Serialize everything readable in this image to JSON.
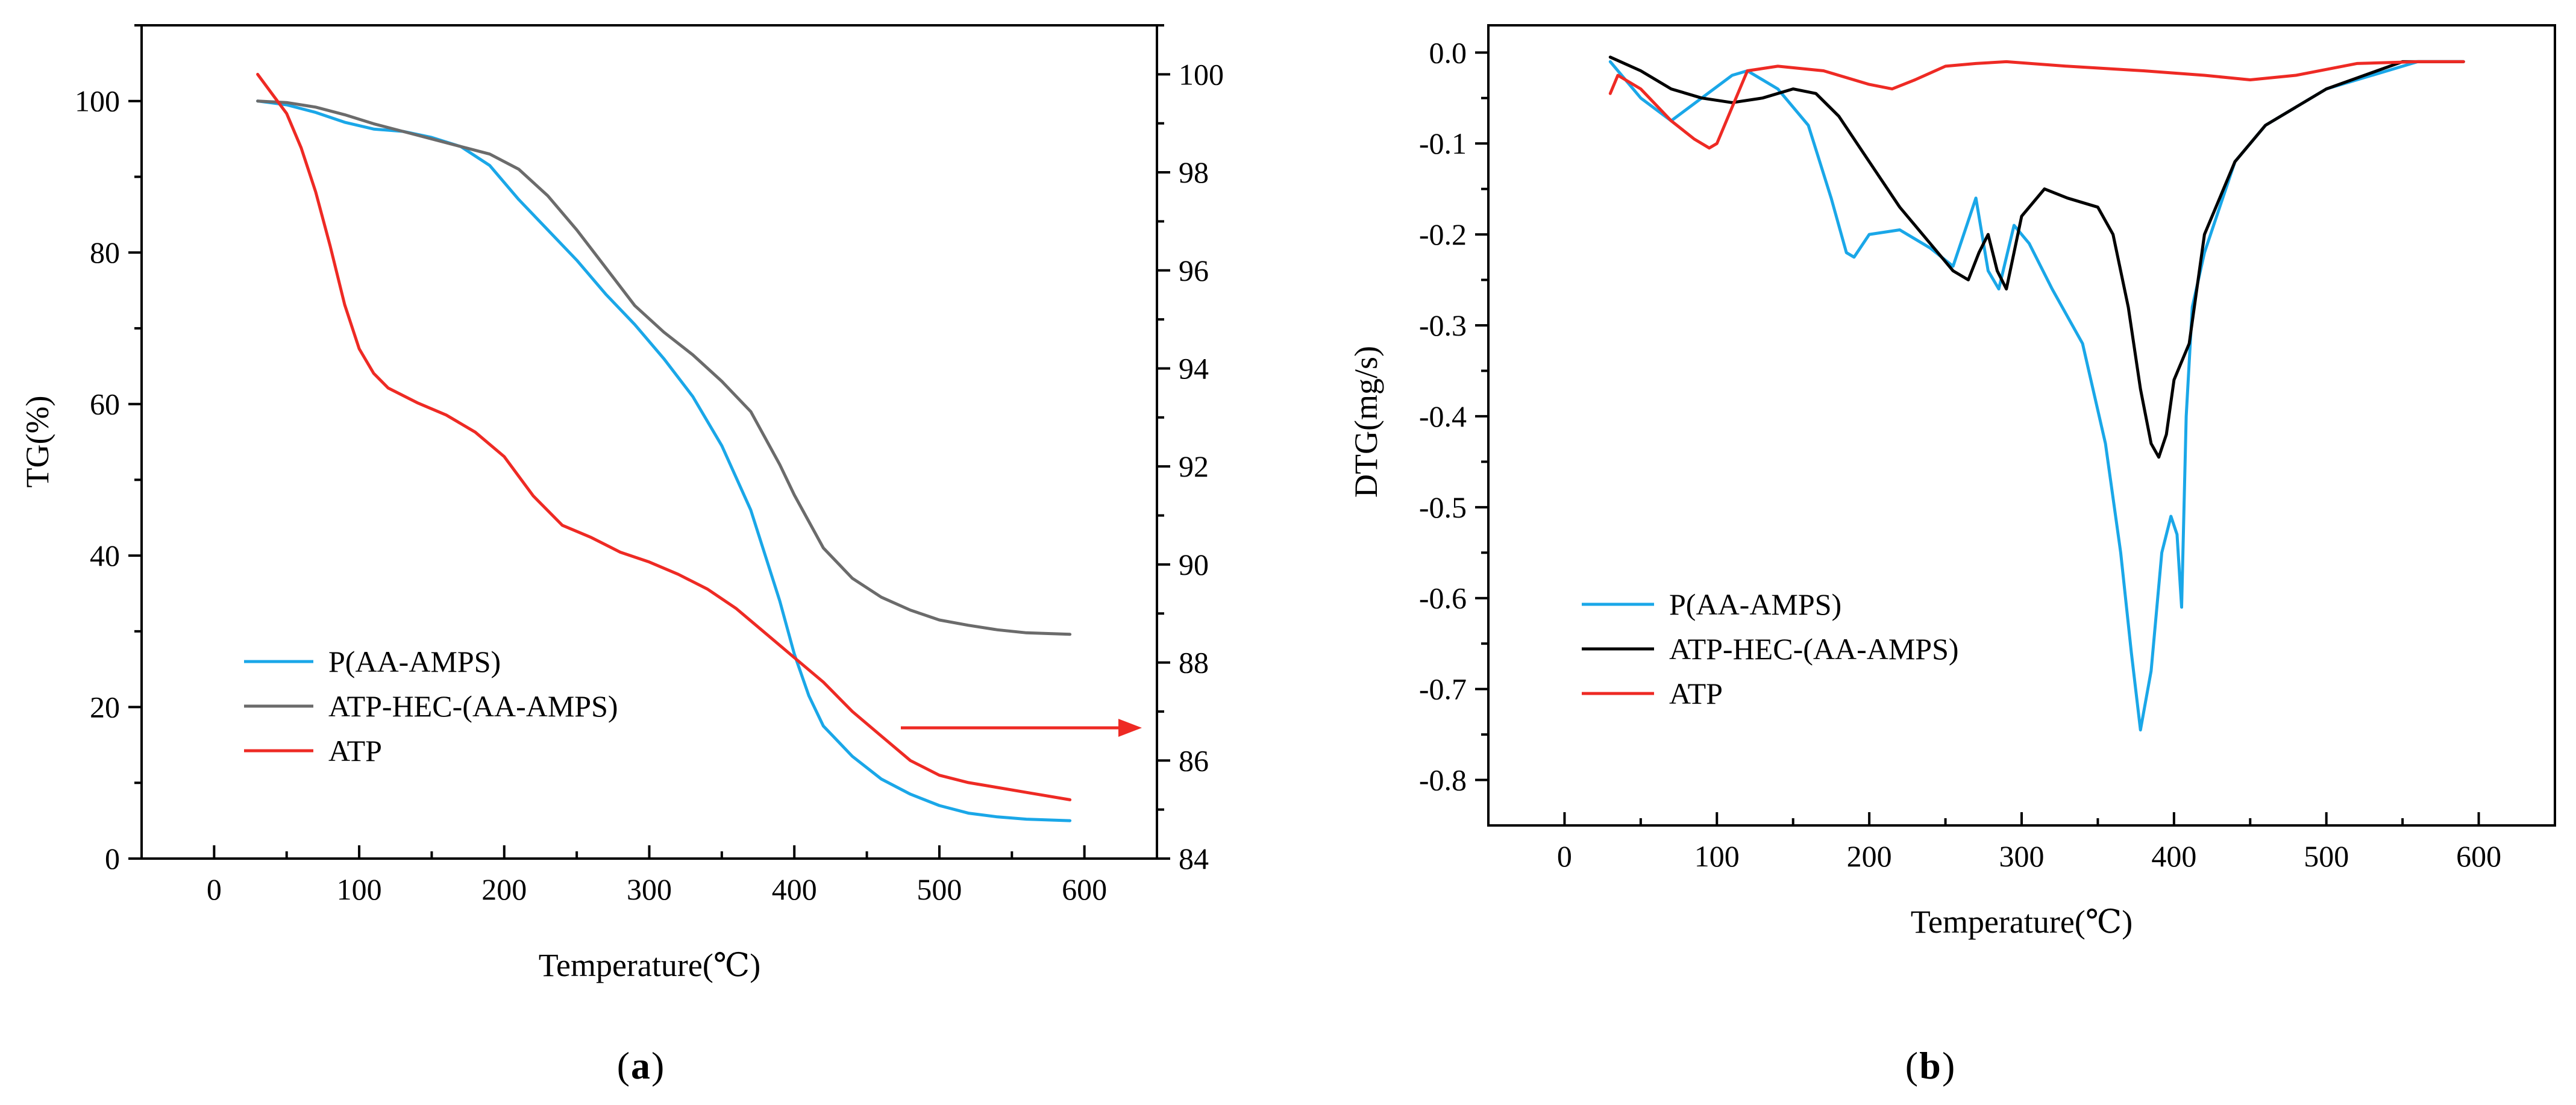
{
  "chart_data": [
    {
      "type": "line",
      "panel_label": "a",
      "xlabel": "Temperature(℃)",
      "ylabel": "TG(%)",
      "xlim": [
        -50,
        650
      ],
      "ylim": [
        0,
        110
      ],
      "y2lim": [
        84,
        101
      ],
      "x_ticks": [
        0,
        100,
        200,
        300,
        400,
        500,
        600
      ],
      "y_ticks": [
        0,
        20,
        40,
        60,
        80,
        100
      ],
      "y2_ticks": [
        84,
        86,
        88,
        90,
        92,
        94,
        96,
        98,
        100
      ],
      "x_tick_labels": [
        "0",
        "100",
        "200",
        "300",
        "400",
        "500",
        "600"
      ],
      "y_tick_labels": [
        "0",
        "20",
        "40",
        "60",
        "80",
        "100"
      ],
      "y2_tick_labels": [
        "84",
        "86",
        "88",
        "90",
        "92",
        "94",
        "96",
        "98",
        "100"
      ],
      "legend_position": "lower-left",
      "annotation": "arrow pointing to right axis for ATP curve",
      "series": [
        {
          "name": "P(AA-AMPS)",
          "color": "#1aa7e8",
          "axis": "left",
          "x": [
            30,
            50,
            70,
            90,
            110,
            130,
            150,
            170,
            190,
            210,
            230,
            250,
            270,
            290,
            310,
            330,
            350,
            370,
            390,
            400,
            410,
            420,
            440,
            460,
            480,
            500,
            520,
            540,
            560,
            590
          ],
          "y": [
            100,
            99.5,
            98.5,
            97.2,
            96.3,
            96,
            95.2,
            94,
            91.5,
            87,
            83,
            79,
            74.5,
            70.5,
            66,
            61,
            54.5,
            46,
            34,
            27,
            21.5,
            17.5,
            13.5,
            10.5,
            8.5,
            7,
            6,
            5.5,
            5.2,
            5
          ]
        },
        {
          "name": "ATP-HEC-(AA-AMPS)",
          "color": "#6b6b6b",
          "axis": "left",
          "x": [
            30,
            50,
            70,
            90,
            110,
            130,
            150,
            170,
            190,
            210,
            230,
            250,
            270,
            290,
            310,
            330,
            350,
            370,
            390,
            400,
            410,
            420,
            440,
            460,
            480,
            500,
            520,
            540,
            560,
            590
          ],
          "y": [
            100,
            99.8,
            99.2,
            98.2,
            97,
            96,
            95,
            94,
            93,
            91,
            87.5,
            83,
            78,
            73,
            69.5,
            66.5,
            63,
            59,
            52,
            48,
            44.5,
            41,
            37,
            34.5,
            32.8,
            31.5,
            30.8,
            30.2,
            29.8,
            29.6
          ]
        },
        {
          "name": "ATP",
          "color": "#ee2a24",
          "axis": "right",
          "x": [
            30,
            40,
            50,
            60,
            70,
            80,
            90,
            100,
            110,
            120,
            140,
            160,
            180,
            200,
            220,
            240,
            260,
            280,
            300,
            320,
            340,
            360,
            380,
            400,
            420,
            440,
            460,
            480,
            500,
            520,
            540,
            560,
            590
          ],
          "y": [
            100,
            99.6,
            99.2,
            98.5,
            97.6,
            96.5,
            95.3,
            94.4,
            93.9,
            93.6,
            93.3,
            93.05,
            92.7,
            92.2,
            91.4,
            90.8,
            90.55,
            90.25,
            90.05,
            89.8,
            89.5,
            89.1,
            88.6,
            88.1,
            87.6,
            87.0,
            86.5,
            86.0,
            85.7,
            85.55,
            85.45,
            85.35,
            85.2
          ]
        }
      ]
    },
    {
      "type": "line",
      "panel_label": "b",
      "xlabel": "Temperature(℃)",
      "ylabel": "DTG(mg/s)",
      "xlim": [
        -50,
        650
      ],
      "ylim": [
        -0.85,
        0.03
      ],
      "x_ticks": [
        0,
        100,
        200,
        300,
        400,
        500,
        600
      ],
      "y_ticks": [
        0.0,
        -0.1,
        -0.2,
        -0.3,
        -0.4,
        -0.5,
        -0.6,
        -0.7,
        -0.8
      ],
      "x_tick_labels": [
        "0",
        "100",
        "200",
        "300",
        "400",
        "500",
        "600"
      ],
      "y_tick_labels": [
        "0.0",
        "-0.1",
        "-0.2",
        "-0.3",
        "-0.4",
        "-0.5",
        "-0.6",
        "-0.7",
        "-0.8"
      ],
      "legend_position": "lower-left",
      "series": [
        {
          "name": "P(AA-AMPS)",
          "color": "#1aa7e8",
          "x": [
            30,
            50,
            70,
            90,
            110,
            120,
            140,
            160,
            175,
            185,
            190,
            200,
            220,
            240,
            255,
            262,
            270,
            278,
            285,
            295,
            305,
            320,
            340,
            355,
            365,
            372,
            378,
            385,
            392,
            398,
            402,
            405,
            408,
            412,
            420,
            440,
            460,
            500,
            560,
            590
          ],
          "y": [
            -0.01,
            -0.05,
            -0.075,
            -0.05,
            -0.025,
            -0.02,
            -0.04,
            -0.08,
            -0.16,
            -0.22,
            -0.225,
            -0.2,
            -0.195,
            -0.215,
            -0.235,
            -0.2,
            -0.16,
            -0.24,
            -0.26,
            -0.19,
            -0.21,
            -0.26,
            -0.32,
            -0.43,
            -0.55,
            -0.66,
            -0.745,
            -0.68,
            -0.55,
            -0.51,
            -0.53,
            -0.61,
            -0.4,
            -0.28,
            -0.22,
            -0.12,
            -0.08,
            -0.04,
            -0.01,
            -0.01
          ]
        },
        {
          "name": "ATP-HEC-(AA-AMPS)",
          "color": "#000000",
          "x": [
            30,
            50,
            70,
            90,
            110,
            130,
            150,
            165,
            180,
            200,
            220,
            240,
            255,
            265,
            272,
            278,
            284,
            290,
            300,
            315,
            330,
            350,
            360,
            370,
            378,
            385,
            390,
            395,
            400,
            410,
            420,
            440,
            460,
            500,
            550,
            590
          ],
          "y": [
            -0.005,
            -0.02,
            -0.04,
            -0.05,
            -0.055,
            -0.05,
            -0.04,
            -0.045,
            -0.07,
            -0.12,
            -0.17,
            -0.21,
            -0.24,
            -0.25,
            -0.22,
            -0.2,
            -0.24,
            -0.26,
            -0.18,
            -0.15,
            -0.16,
            -0.17,
            -0.2,
            -0.28,
            -0.37,
            -0.43,
            -0.445,
            -0.42,
            -0.36,
            -0.32,
            -0.2,
            -0.12,
            -0.08,
            -0.04,
            -0.01,
            -0.01
          ]
        },
        {
          "name": "ATP",
          "color": "#ee2a24",
          "x": [
            30,
            35,
            50,
            70,
            85,
            95,
            100,
            110,
            120,
            140,
            170,
            200,
            215,
            230,
            250,
            270,
            290,
            330,
            380,
            420,
            450,
            480,
            520,
            560,
            590
          ],
          "y": [
            -0.045,
            -0.025,
            -0.04,
            -0.075,
            -0.095,
            -0.105,
            -0.1,
            -0.06,
            -0.02,
            -0.015,
            -0.02,
            -0.035,
            -0.04,
            -0.03,
            -0.015,
            -0.012,
            -0.01,
            -0.015,
            -0.02,
            -0.025,
            -0.03,
            -0.025,
            -0.012,
            -0.01,
            -0.01
          ]
        }
      ]
    }
  ]
}
